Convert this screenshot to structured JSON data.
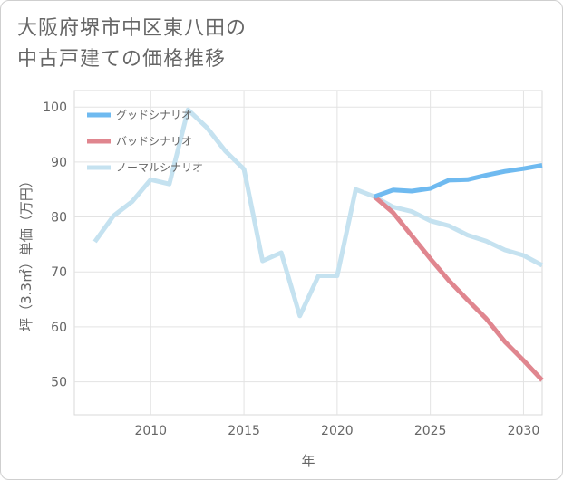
{
  "title_lines": [
    "大阪府堺市中区東八田の",
    "中古戸建ての価格推移"
  ],
  "chart_data": {
    "type": "line",
    "title": "大阪府堺市中区東八田の中古戸建ての価格推移",
    "xlabel": "年",
    "ylabel": "坪（3.3㎡）単価（万円）",
    "xlim": [
      2005.9,
      2031
    ],
    "ylim": [
      44,
      103
    ],
    "xticks": [
      2010,
      2015,
      2020,
      2025,
      2030
    ],
    "yticks": [
      50,
      60,
      70,
      80,
      90,
      100
    ],
    "grid": true,
    "legend_position": "top-left",
    "series": [
      {
        "name": "グッドシナリオ",
        "color": "#6fbaf0",
        "x": [
          2022,
          2023,
          2024,
          2025,
          2026,
          2027,
          2028,
          2029,
          2030,
          2031
        ],
        "values": [
          83.7,
          84.9,
          84.7,
          85.2,
          86.7,
          86.8,
          87.6,
          88.3,
          88.8,
          89.4
        ]
      },
      {
        "name": "バッドシナリオ",
        "color": "#e0868f",
        "x": [
          2022,
          2023,
          2024,
          2025,
          2026,
          2027,
          2028,
          2029,
          2030,
          2031
        ],
        "values": [
          83.7,
          80.8,
          76.6,
          72.4,
          68.4,
          64.9,
          61.5,
          57.3,
          53.9,
          50.3
        ]
      },
      {
        "name": "ノーマルシナリオ",
        "color": "#c5e2f0",
        "x": [
          2007,
          2008,
          2009,
          2010,
          2011,
          2012,
          2013,
          2014,
          2015,
          2016,
          2017,
          2018,
          2019,
          2020,
          2021,
          2022,
          2023,
          2024,
          2025,
          2026,
          2027,
          2028,
          2029,
          2030,
          2031
        ],
        "values": [
          75.5,
          80.2,
          82.8,
          86.8,
          86.0,
          99.5,
          96.3,
          92.0,
          88.7,
          72.0,
          73.5,
          62.0,
          69.3,
          69.3,
          85.0,
          83.7,
          81.8,
          81.0,
          79.3,
          78.4,
          76.7,
          75.6,
          74.0,
          73.0,
          71.2
        ]
      }
    ]
  }
}
